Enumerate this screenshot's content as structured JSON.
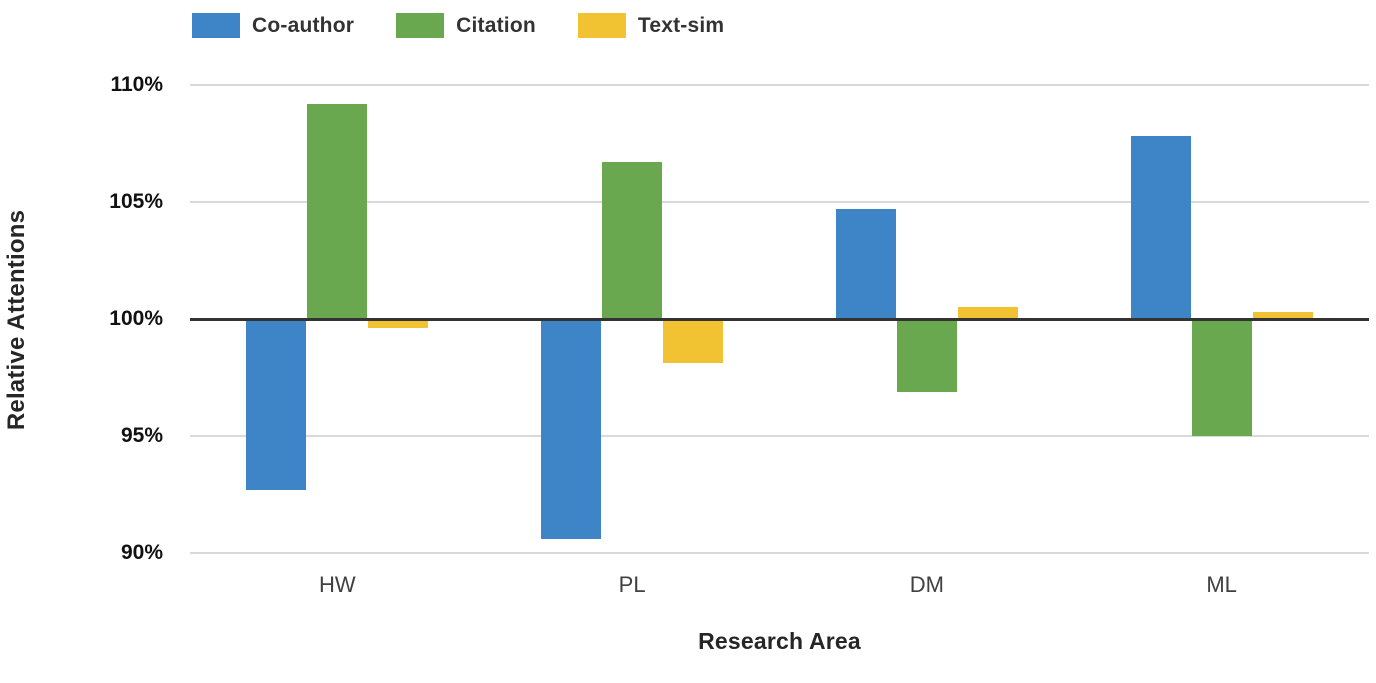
{
  "chart_data": {
    "type": "bar",
    "title": "",
    "xlabel": "Research Area",
    "ylabel": "Relative Attentions",
    "categories": [
      "HW",
      "PL",
      "DM",
      "ML"
    ],
    "series": [
      {
        "name": "Co-author",
        "color": "#3d85c6",
        "values": [
          92.7,
          90.6,
          104.7,
          107.8
        ]
      },
      {
        "name": "Citation",
        "color": "#6aa84f",
        "values": [
          109.2,
          106.7,
          96.9,
          95.0
        ]
      },
      {
        "name": "Text-sim",
        "color": "#f1c232",
        "values": [
          99.6,
          98.1,
          100.5,
          100.3
        ]
      }
    ],
    "ylim": [
      90,
      110
    ],
    "yticks": [
      110,
      105,
      100,
      95,
      90
    ],
    "ytick_labels": [
      "110%",
      "105%",
      "100%",
      "95%",
      "90%"
    ],
    "baseline_value": 100,
    "grid": "horizontal",
    "legend_position": "top",
    "grid_color": "#d9d9d9",
    "baseline_color": "#333333"
  }
}
